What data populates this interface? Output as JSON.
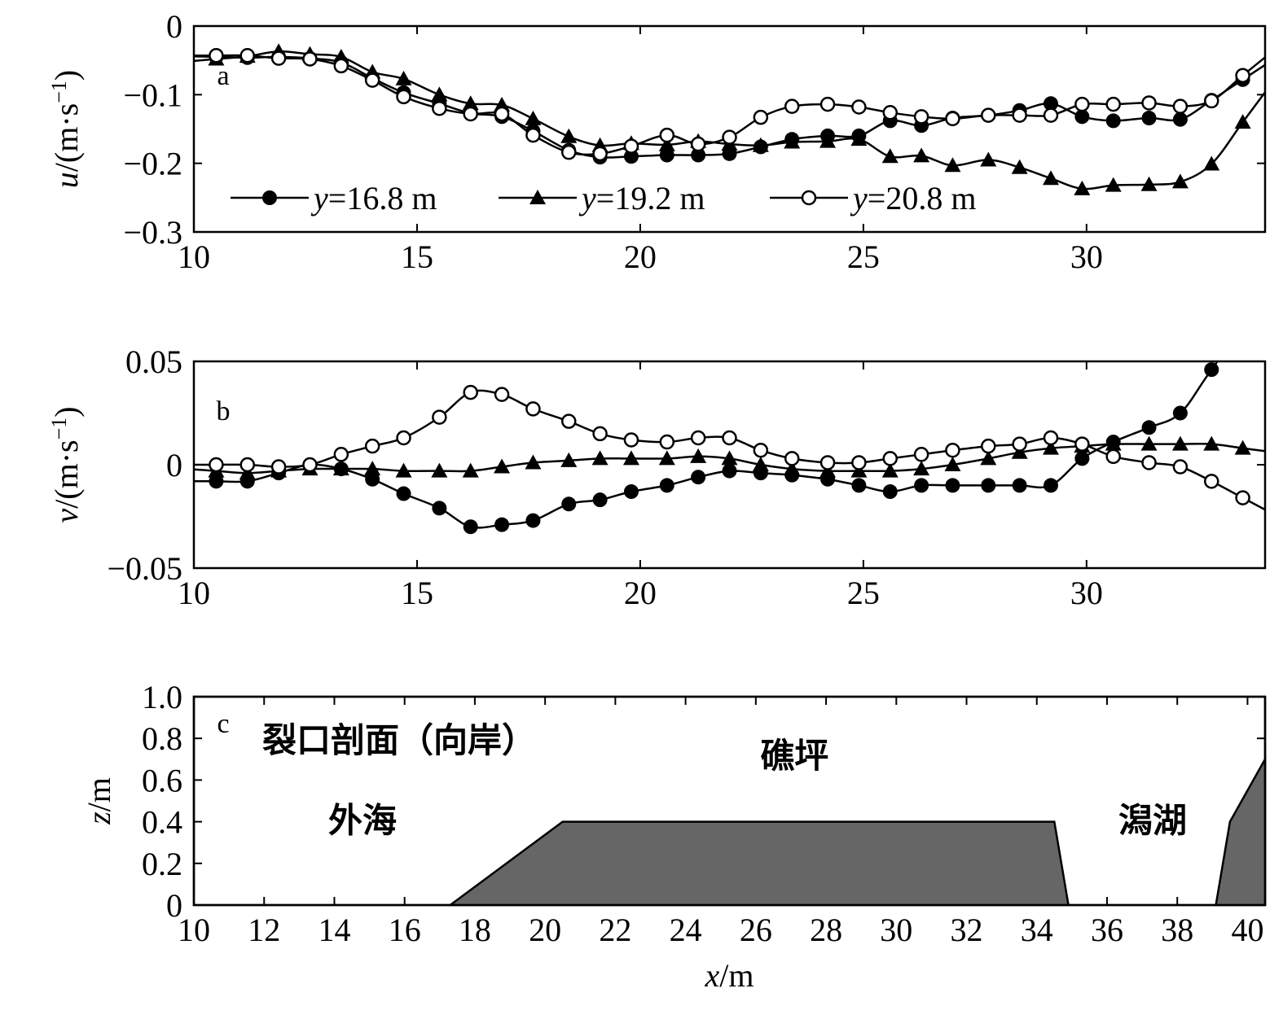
{
  "chart_data": [
    {
      "type": "line",
      "panel_label": "a",
      "ylabel": "u/(m·s−1)",
      "xlim": [
        10,
        34
      ],
      "ylim": [
        -0.3,
        0
      ],
      "xticks": [
        "10",
        "15",
        "20",
        "25",
        "30"
      ],
      "yticks": [
        "0",
        "−0.1",
        "−0.2",
        "−0.3"
      ],
      "legend_position": "bottom-left",
      "x": [
        10.5,
        11.2,
        11.9,
        12.6,
        13.3,
        14.0,
        14.7,
        15.5,
        16.2,
        16.9,
        17.6,
        18.4,
        19.1,
        19.8,
        20.6,
        21.3,
        22.0,
        22.7,
        23.4,
        24.2,
        24.9,
        25.6,
        26.3,
        27.0,
        27.8,
        28.5,
        29.2,
        29.9,
        30.6,
        31.4,
        32.1,
        32.8,
        33.5
      ],
      "series": [
        {
          "name": "y=16.8 m",
          "marker": "filled-circle",
          "values": [
            -0.045,
            -0.046,
            -0.045,
            -0.047,
            -0.053,
            -0.076,
            -0.097,
            -0.113,
            -0.127,
            -0.132,
            -0.153,
            -0.181,
            -0.191,
            -0.19,
            -0.188,
            -0.188,
            -0.186,
            -0.176,
            -0.165,
            -0.16,
            -0.16,
            -0.138,
            -0.145,
            -0.134,
            -0.13,
            -0.123,
            -0.113,
            -0.132,
            -0.138,
            -0.134,
            -0.136,
            -0.108,
            -0.078
          ]
        },
        {
          "name": "y=19.2 m",
          "marker": "filled-triangle",
          "values": [
            -0.048,
            -0.044,
            -0.037,
            -0.041,
            -0.045,
            -0.067,
            -0.077,
            -0.1,
            -0.113,
            -0.115,
            -0.135,
            -0.161,
            -0.174,
            -0.171,
            -0.173,
            -0.168,
            -0.172,
            -0.174,
            -0.169,
            -0.168,
            -0.165,
            -0.19,
            -0.189,
            -0.203,
            -0.195,
            -0.206,
            -0.222,
            -0.237,
            -0.232,
            -0.231,
            -0.227,
            -0.201,
            -0.14
          ]
        },
        {
          "name": "y=20.8 m",
          "marker": "open-circle",
          "values": [
            -0.043,
            -0.043,
            -0.047,
            -0.048,
            -0.058,
            -0.079,
            -0.103,
            -0.12,
            -0.128,
            -0.128,
            -0.159,
            -0.184,
            -0.186,
            -0.175,
            -0.159,
            -0.172,
            -0.162,
            -0.133,
            -0.117,
            -0.114,
            -0.118,
            -0.126,
            -0.132,
            -0.135,
            -0.13,
            -0.13,
            -0.13,
            -0.114,
            -0.114,
            -0.112,
            -0.117,
            -0.109,
            -0.072
          ]
        }
      ]
    },
    {
      "type": "line",
      "panel_label": "b",
      "ylabel": "v/(m·s−1)",
      "xlim": [
        10,
        34
      ],
      "ylim": [
        -0.05,
        0.05
      ],
      "xticks": [
        "10",
        "15",
        "20",
        "25",
        "30"
      ],
      "yticks": [
        "0.05",
        "0",
        "−0.05"
      ],
      "x": [
        10.5,
        11.2,
        11.9,
        12.6,
        13.3,
        14.0,
        14.7,
        15.5,
        16.2,
        16.9,
        17.6,
        18.4,
        19.1,
        19.8,
        20.6,
        21.3,
        22.0,
        22.7,
        23.4,
        24.2,
        24.9,
        25.6,
        26.3,
        27.0,
        27.8,
        28.5,
        29.2,
        29.9,
        30.6,
        31.4,
        32.1,
        32.8,
        33.5
      ],
      "series": [
        {
          "name": "y=16.8 m",
          "marker": "filled-circle",
          "values": [
            -0.008,
            -0.008,
            -0.004,
            0.0,
            -0.002,
            -0.007,
            -0.014,
            -0.021,
            -0.03,
            -0.029,
            -0.027,
            -0.019,
            -0.017,
            -0.013,
            -0.01,
            -0.006,
            -0.003,
            -0.004,
            -0.005,
            -0.007,
            -0.01,
            -0.013,
            -0.01,
            -0.01,
            -0.01,
            -0.01,
            -0.01,
            0.003,
            0.011,
            0.018,
            0.025,
            0.046,
            null
          ]
        },
        {
          "name": "y=19.2 m",
          "marker": "filled-triangle",
          "values": [
            -0.003,
            -0.004,
            -0.003,
            -0.002,
            -0.002,
            -0.002,
            -0.003,
            -0.003,
            -0.003,
            -0.001,
            0.001,
            0.002,
            0.003,
            0.003,
            0.003,
            0.004,
            0.003,
            0.0,
            -0.002,
            -0.003,
            -0.003,
            -0.003,
            -0.002,
            0.0,
            0.003,
            0.006,
            0.008,
            0.009,
            0.01,
            0.01,
            0.01,
            0.01,
            0.008
          ]
        },
        {
          "name": "y=20.8 m",
          "marker": "open-circle",
          "values": [
            0.0,
            0.0,
            -0.001,
            0.0,
            0.005,
            0.009,
            0.013,
            0.023,
            0.035,
            0.034,
            0.027,
            0.021,
            0.015,
            0.012,
            0.011,
            0.013,
            0.013,
            0.007,
            0.003,
            0.001,
            0.001,
            0.003,
            0.005,
            0.007,
            0.009,
            0.01,
            0.013,
            0.01,
            0.004,
            0.001,
            -0.001,
            -0.008,
            -0.016
          ]
        }
      ]
    },
    {
      "type": "area",
      "panel_label": "c",
      "title": "裂口剖面（向岸）",
      "xlabel": "x/m",
      "ylabel": "z/m",
      "xlim": [
        10,
        40.5
      ],
      "ylim": [
        0,
        1.0
      ],
      "xticks": [
        "10",
        "12",
        "14",
        "16",
        "18",
        "20",
        "22",
        "24",
        "26",
        "28",
        "30",
        "32",
        "34",
        "36",
        "38",
        "40"
      ],
      "yticks": [
        "1.0",
        "0.8",
        "0.6",
        "0.4",
        "0.2",
        "0"
      ],
      "reef_profile": [
        [
          17.3,
          0
        ],
        [
          20.5,
          0.4
        ],
        [
          34.5,
          0.4
        ],
        [
          34.9,
          0
        ]
      ],
      "shore_profile": [
        [
          39.1,
          0
        ],
        [
          39.5,
          0.4
        ],
        [
          40.5,
          0.7
        ],
        [
          40.5,
          0
        ]
      ],
      "fill_color": "#666666",
      "annotations": [
        {
          "text": "外海",
          "x": 14.8,
          "y": 0.35
        },
        {
          "text": "礁坪",
          "x": 27.1,
          "y": 0.66
        },
        {
          "text": "潟湖",
          "x": 37.3,
          "y": 0.35
        }
      ]
    }
  ]
}
